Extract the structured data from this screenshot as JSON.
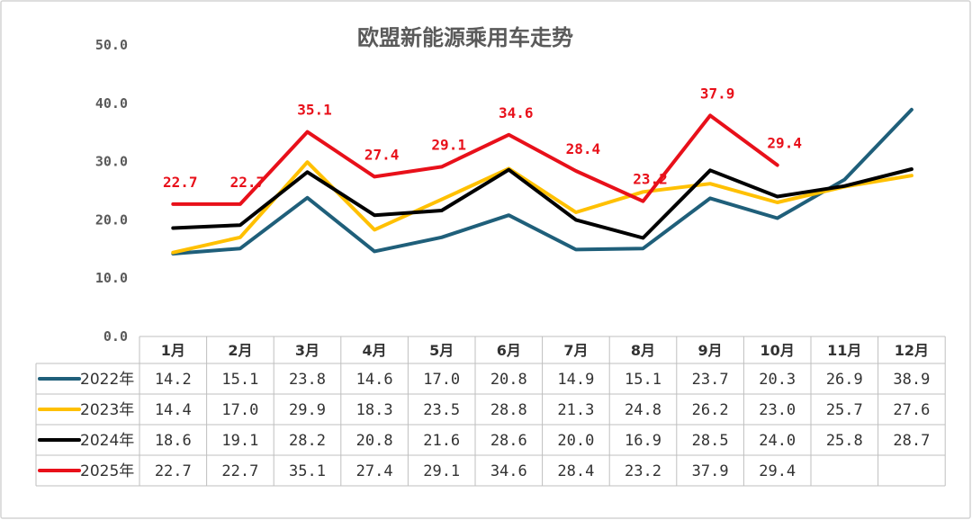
{
  "chart_data": {
    "type": "line",
    "title": "欧盟新能源乘用车走势",
    "categories": [
      "1月",
      "2月",
      "3月",
      "4月",
      "5月",
      "6月",
      "7月",
      "8月",
      "9月",
      "10月",
      "11月",
      "12月"
    ],
    "ylim": [
      0,
      50
    ],
    "yticks": [
      "0.0",
      "10.0",
      "20.0",
      "30.0",
      "40.0",
      "50.0"
    ],
    "data_table": true,
    "series": [
      {
        "name": "2022年",
        "color": "#1f5f7a",
        "values": [
          14.2,
          15.1,
          23.8,
          14.6,
          17.0,
          20.8,
          14.9,
          15.1,
          23.7,
          20.3,
          26.9,
          38.9
        ],
        "labels": [
          "14.2",
          "15.1",
          "23.8",
          "14.6",
          "17.0",
          "20.8",
          "14.9",
          "15.1",
          "23.7",
          "20.3",
          "26.9",
          "38.9"
        ]
      },
      {
        "name": "2023年",
        "color": "#ffc000",
        "values": [
          14.4,
          17.0,
          29.9,
          18.3,
          23.5,
          28.8,
          21.3,
          24.8,
          26.2,
          23.0,
          25.7,
          27.6
        ],
        "labels": [
          "14.4",
          "17.0",
          "29.9",
          "18.3",
          "23.5",
          "28.8",
          "21.3",
          "24.8",
          "26.2",
          "23.0",
          "25.7",
          "27.6"
        ]
      },
      {
        "name": "2024年",
        "color": "#000000",
        "values": [
          18.6,
          19.1,
          28.2,
          20.8,
          21.6,
          28.6,
          20.0,
          16.9,
          28.5,
          24.0,
          25.8,
          28.7
        ],
        "labels": [
          "18.6",
          "19.1",
          "28.2",
          "20.8",
          "21.6",
          "28.6",
          "20.0",
          "16.9",
          "28.5",
          "24.0",
          "25.8",
          "28.7"
        ]
      },
      {
        "name": "2025年",
        "color": "#e8101a",
        "values": [
          22.7,
          22.7,
          35.1,
          27.4,
          29.1,
          34.6,
          28.4,
          23.2,
          37.9,
          29.4,
          null,
          null
        ],
        "labels": [
          "22.7",
          "22.7",
          "35.1",
          "27.4",
          "29.1",
          "34.6",
          "28.4",
          "23.2",
          "37.9",
          "29.4",
          "",
          ""
        ]
      }
    ]
  }
}
